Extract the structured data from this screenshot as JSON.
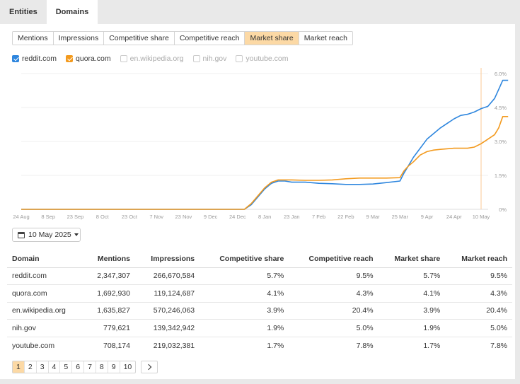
{
  "top_tabs": [
    {
      "label": "Entities",
      "active": false
    },
    {
      "label": "Domains",
      "active": true
    }
  ],
  "metric_tabs": [
    {
      "label": "Mentions",
      "active": false
    },
    {
      "label": "Impressions",
      "active": false
    },
    {
      "label": "Competitive share",
      "active": false
    },
    {
      "label": "Competitive reach",
      "active": false
    },
    {
      "label": "Market share",
      "active": true
    },
    {
      "label": "Market reach",
      "active": false
    }
  ],
  "legend": [
    {
      "label": "reddit.com",
      "checked": true,
      "color": "#2e86de"
    },
    {
      "label": "quora.com",
      "checked": true,
      "color": "#f39a1e"
    },
    {
      "label": "en.wikipedia.org",
      "checked": false
    },
    {
      "label": "nih.gov",
      "checked": false
    },
    {
      "label": "youtube.com",
      "checked": false
    }
  ],
  "chart_data": {
    "type": "line",
    "x_tick_labels": [
      "24 Aug",
      "8 Sep",
      "23 Sep",
      "8 Oct",
      "23 Oct",
      "7 Nov",
      "23 Nov",
      "9 Dec",
      "24 Dec",
      "8 Jan",
      "23 Jan",
      "7 Feb",
      "22 Feb",
      "9 Mar",
      "25 Mar",
      "9 Apr",
      "24 Apr",
      "10 May"
    ],
    "y_tick_labels": [
      "6.0%",
      "4.5%",
      "3.0%",
      "1.5%",
      "0%"
    ],
    "ylim": [
      0,
      6.0
    ],
    "grid": true,
    "marker_label": "10 May",
    "series": [
      {
        "name": "reddit.com",
        "color": "#2e86de",
        "x": [
          0,
          16.5,
          17.0,
          17.5,
          18.0,
          18.5,
          19.0,
          19.5,
          20.0,
          21.0,
          22.0,
          23.0,
          24.0,
          25.0,
          26.0,
          27.0,
          28.0,
          28.3,
          28.6,
          29.0,
          30.0,
          31.0,
          32.0,
          32.5,
          33.0,
          33.5,
          34.0,
          34.5,
          35.0,
          35.3,
          35.6,
          36.0
        ],
        "values": [
          0,
          0,
          0.2,
          0.55,
          0.9,
          1.15,
          1.25,
          1.25,
          1.2,
          1.2,
          1.15,
          1.13,
          1.1,
          1.1,
          1.12,
          1.18,
          1.25,
          1.6,
          1.9,
          2.3,
          3.1,
          3.6,
          4.0,
          4.15,
          4.2,
          4.3,
          4.45,
          4.55,
          4.9,
          5.3,
          5.7,
          5.7
        ]
      },
      {
        "name": "quora.com",
        "color": "#f39a1e",
        "x": [
          0,
          16.5,
          17.0,
          17.5,
          18.0,
          18.5,
          19.0,
          20.0,
          21.0,
          22.0,
          23.0,
          24.0,
          25.0,
          26.0,
          27.0,
          28.0,
          28.3,
          28.6,
          29.0,
          29.5,
          30.0,
          30.5,
          31.0,
          32.0,
          33.0,
          33.5,
          34.0,
          34.5,
          35.0,
          35.3,
          35.6,
          36.0
        ],
        "values": [
          0,
          0,
          0.25,
          0.6,
          0.95,
          1.2,
          1.3,
          1.3,
          1.28,
          1.28,
          1.3,
          1.35,
          1.38,
          1.38,
          1.38,
          1.4,
          1.7,
          1.9,
          2.1,
          2.4,
          2.55,
          2.62,
          2.65,
          2.7,
          2.7,
          2.75,
          2.9,
          3.1,
          3.3,
          3.6,
          4.1,
          4.1
        ]
      }
    ]
  },
  "date_picker": {
    "label": "10 May 2025"
  },
  "table": {
    "headers": [
      "Domain",
      "Mentions",
      "Impressions",
      "Competitive share",
      "Competitive reach",
      "Market share",
      "Market reach"
    ],
    "rows": [
      [
        "reddit.com",
        "2,347,307",
        "266,670,584",
        "5.7%",
        "9.5%",
        "5.7%",
        "9.5%"
      ],
      [
        "quora.com",
        "1,692,930",
        "119,124,687",
        "4.1%",
        "4.3%",
        "4.1%",
        "4.3%"
      ],
      [
        "en.wikipedia.org",
        "1,635,827",
        "570,246,063",
        "3.9%",
        "20.4%",
        "3.9%",
        "20.4%"
      ],
      [
        "nih.gov",
        "779,621",
        "139,342,942",
        "1.9%",
        "5.0%",
        "1.9%",
        "5.0%"
      ],
      [
        "youtube.com",
        "708,174",
        "219,032,381",
        "1.7%",
        "7.8%",
        "1.7%",
        "7.8%"
      ]
    ]
  },
  "pagination": {
    "pages": [
      "1",
      "2",
      "3",
      "4",
      "5",
      "6",
      "7",
      "8",
      "9",
      "10"
    ],
    "active": "1",
    "next_icon": "chevron-right-icon"
  }
}
